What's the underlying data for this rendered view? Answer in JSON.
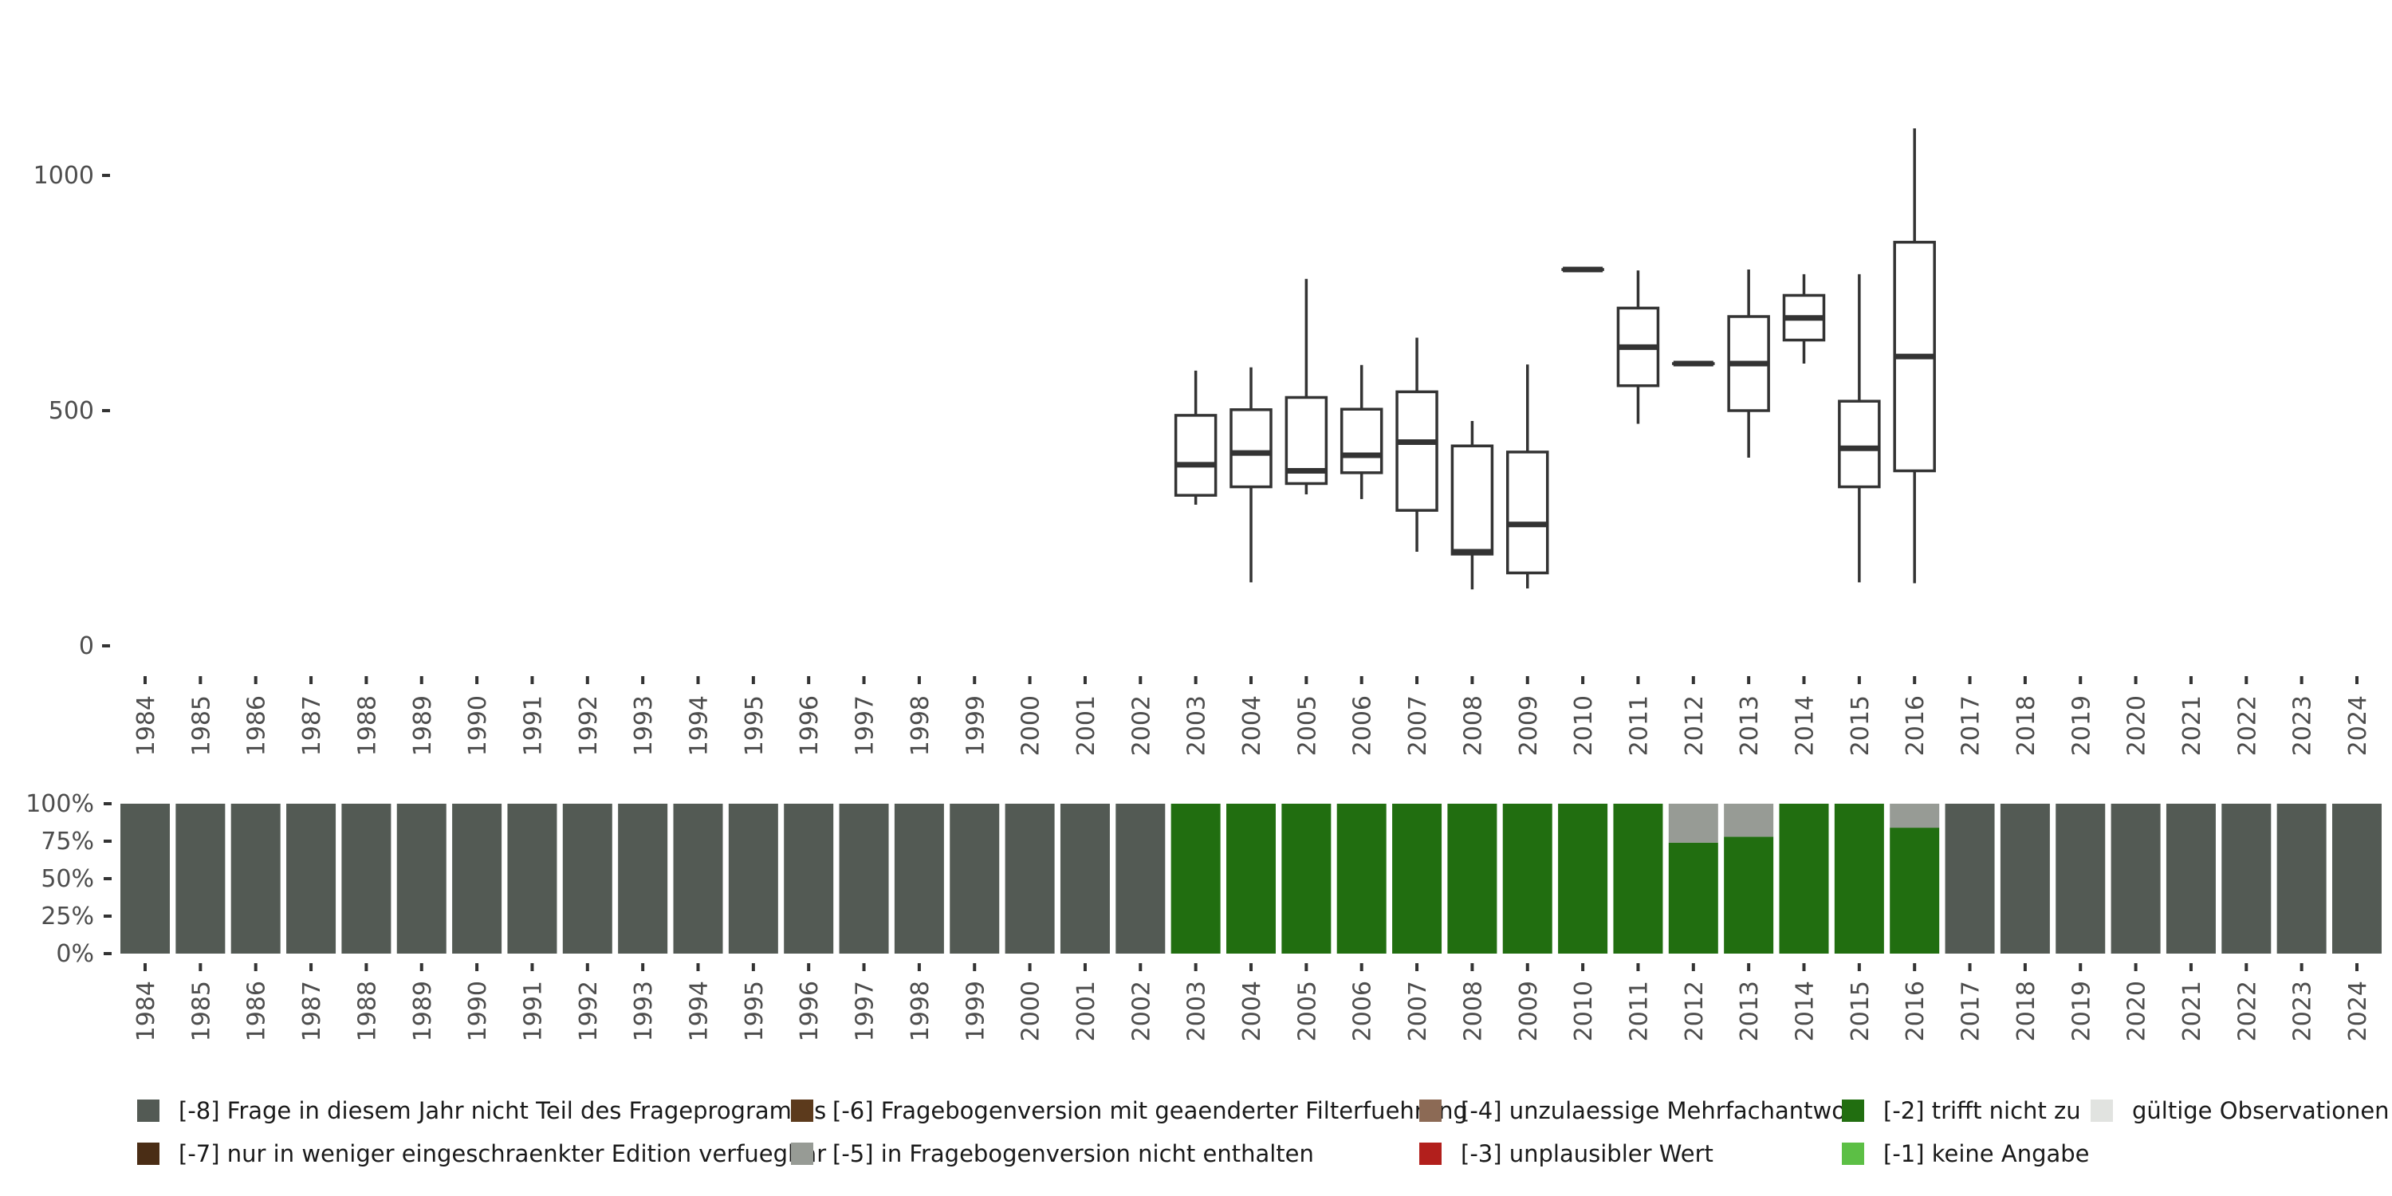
{
  "chart_data": [
    {
      "type": "boxplot",
      "years": [
        "1984",
        "1985",
        "1986",
        "1987",
        "1988",
        "1989",
        "1990",
        "1991",
        "1992",
        "1993",
        "1994",
        "1995",
        "1996",
        "1997",
        "1998",
        "1999",
        "2000",
        "2001",
        "2002",
        "2003",
        "2004",
        "2005",
        "2006",
        "2007",
        "2008",
        "2009",
        "2010",
        "2011",
        "2012",
        "2013",
        "2014",
        "2015",
        "2016",
        "2017",
        "2018",
        "2019",
        "2020",
        "2021",
        "2022",
        "2023",
        "2024"
      ],
      "ylim": [
        0,
        1150
      ],
      "yticks": [
        0,
        500,
        1000
      ],
      "ytick_labels": [
        "0",
        "500",
        "1000"
      ],
      "boxes": [
        {
          "year": "2003",
          "min": 300,
          "q1": 320,
          "median": 385,
          "q3": 490,
          "max": 585
        },
        {
          "year": "2004",
          "min": 135,
          "q1": 338,
          "median": 410,
          "q3": 502,
          "max": 592
        },
        {
          "year": "2005",
          "min": 322,
          "q1": 345,
          "median": 372,
          "q3": 528,
          "max": 780
        },
        {
          "year": "2006",
          "min": 312,
          "q1": 368,
          "median": 405,
          "q3": 503,
          "max": 597
        },
        {
          "year": "2007",
          "min": 200,
          "q1": 288,
          "median": 433,
          "q3": 540,
          "max": 655
        },
        {
          "year": "2008",
          "min": 120,
          "q1": 195,
          "median": 200,
          "q3": 425,
          "max": 478
        },
        {
          "year": "2009",
          "min": 122,
          "q1": 155,
          "median": 258,
          "q3": 412,
          "max": 598
        },
        {
          "year": "2010",
          "min": 800,
          "q1": 800,
          "median": 800,
          "q3": 800,
          "max": 800
        },
        {
          "year": "2011",
          "min": 472,
          "q1": 553,
          "median": 635,
          "q3": 718,
          "max": 798
        },
        {
          "year": "2012",
          "min": 600,
          "q1": 600,
          "median": 600,
          "q3": 600,
          "max": 600
        },
        {
          "year": "2013",
          "min": 400,
          "q1": 500,
          "median": 600,
          "q3": 700,
          "max": 800
        },
        {
          "year": "2014",
          "min": 600,
          "q1": 650,
          "median": 697,
          "q3": 745,
          "max": 790
        },
        {
          "year": "2015",
          "min": 135,
          "q1": 338,
          "median": 420,
          "q3": 520,
          "max": 790
        },
        {
          "year": "2016",
          "min": 133,
          "q1": 372,
          "median": 615,
          "q3": 858,
          "max": 1100
        }
      ]
    },
    {
      "type": "stacked_bar",
      "years": [
        "1984",
        "1985",
        "1986",
        "1987",
        "1988",
        "1989",
        "1990",
        "1991",
        "1992",
        "1993",
        "1994",
        "1995",
        "1996",
        "1997",
        "1998",
        "1999",
        "2000",
        "2001",
        "2002",
        "2003",
        "2004",
        "2005",
        "2006",
        "2007",
        "2008",
        "2009",
        "2010",
        "2011",
        "2012",
        "2013",
        "2014",
        "2015",
        "2016",
        "2017",
        "2018",
        "2019",
        "2020",
        "2021",
        "2022",
        "2023",
        "2024"
      ],
      "yticks": [
        0,
        25,
        50,
        75,
        100
      ],
      "ytick_labels": [
        "0%",
        "25%",
        "50%",
        "75%",
        "100%"
      ],
      "series": [
        {
          "name": "[-8] Frage in diesem Jahr nicht Teil des Frageprogramms",
          "color": "#535a54",
          "values": [
            100,
            100,
            100,
            100,
            100,
            100,
            100,
            100,
            100,
            100,
            100,
            100,
            100,
            100,
            100,
            100,
            100,
            100,
            100,
            0,
            0,
            0,
            0,
            0,
            0,
            0,
            0,
            0,
            0,
            0,
            0,
            0,
            0,
            100,
            100,
            100,
            100,
            100,
            100,
            100,
            100
          ]
        },
        {
          "name": "[-2] trifft nicht zu",
          "color": "#216e10",
          "values": [
            0,
            0,
            0,
            0,
            0,
            0,
            0,
            0,
            0,
            0,
            0,
            0,
            0,
            0,
            0,
            0,
            0,
            0,
            0,
            100,
            100,
            100,
            100,
            100,
            100,
            100,
            100,
            100,
            74,
            78,
            100,
            100,
            84,
            0,
            0,
            0,
            0,
            0,
            0,
            0,
            0
          ]
        },
        {
          "name": "[-5] in Fragebogenversion nicht enthalten",
          "color": "#979b95",
          "values": [
            0,
            0,
            0,
            0,
            0,
            0,
            0,
            0,
            0,
            0,
            0,
            0,
            0,
            0,
            0,
            0,
            0,
            0,
            0,
            0,
            0,
            0,
            0,
            0,
            0,
            0,
            0,
            0,
            26,
            22,
            0,
            0,
            16,
            0,
            0,
            0,
            0,
            0,
            0,
            0,
            0
          ]
        }
      ]
    }
  ],
  "legend": [
    {
      "label": "[-8] Frage in diesem Jahr nicht Teil des Frageprogramms",
      "color": "#535a54"
    },
    {
      "label": "[-7] nur in weniger eingeschraenkter Edition verfuegbar",
      "color": "#4a2d15"
    },
    {
      "label": "[-6] Fragebogenversion mit geaenderter Filterfuehrung",
      "color": "#5c3a1c"
    },
    {
      "label": "[-5] in Fragebogenversion nicht enthalten",
      "color": "#979b95"
    },
    {
      "label": "[-4] unzulaessige Mehrfachantwort",
      "color": "#8c6a55"
    },
    {
      "label": "[-3] unplausibler Wert",
      "color": "#b21f1c"
    },
    {
      "label": "[-2] trifft nicht zu",
      "color": "#216e10"
    },
    {
      "label": "[-1] keine Angabe",
      "color": "#5cbf45"
    },
    {
      "label": "gültige Observationen",
      "color": "#e1e3e0"
    }
  ]
}
